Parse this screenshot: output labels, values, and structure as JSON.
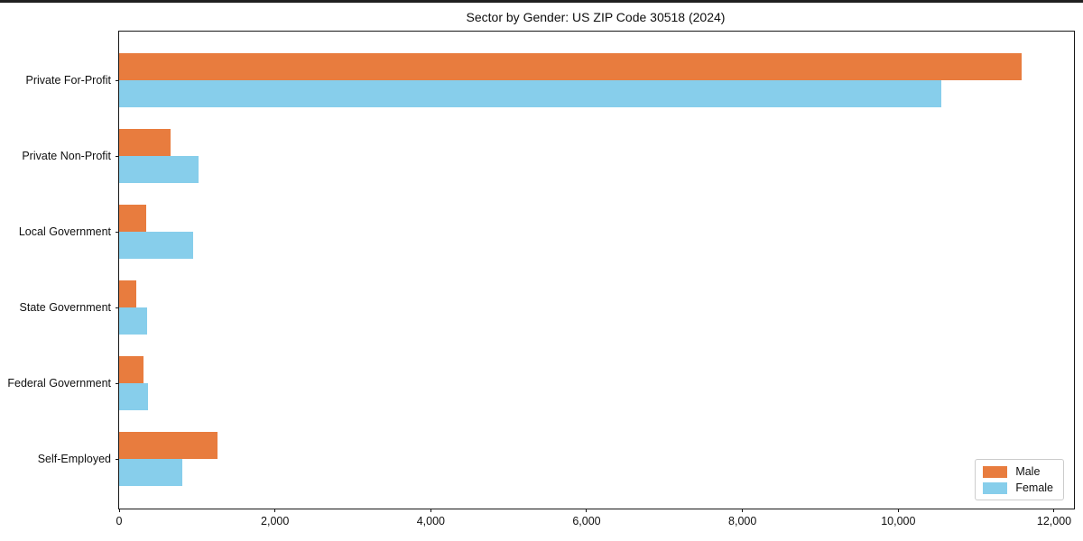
{
  "chart_data": {
    "type": "bar",
    "orientation": "horizontal",
    "title": "Sector by Gender: US ZIP Code 30518 (2024)",
    "categories": [
      "Private For-Profit",
      "Private Non-Profit",
      "Local Government",
      "State Government",
      "Federal Government",
      "Self-Employed"
    ],
    "series": [
      {
        "name": "Male",
        "color": "#E87C3E",
        "values": [
          11580,
          665,
          345,
          220,
          315,
          1265
        ]
      },
      {
        "name": "Female",
        "color": "#87CEEB",
        "values": [
          10550,
          1020,
          955,
          355,
          375,
          810
        ]
      }
    ],
    "xlabel": "",
    "ylabel": "",
    "xlim": [
      0,
      12255
    ],
    "x_ticks": [
      {
        "value": 0,
        "label": "0"
      },
      {
        "value": 2000,
        "label": "2,000"
      },
      {
        "value": 4000,
        "label": "4,000"
      },
      {
        "value": 6000,
        "label": "6,000"
      },
      {
        "value": 8000,
        "label": "8,000"
      },
      {
        "value": 10000,
        "label": "10,000"
      },
      {
        "value": 12000,
        "label": "12,000"
      }
    ],
    "grid": false,
    "legend_position": "lower right"
  },
  "colors": {
    "male": "#E87C3E",
    "female": "#87CEEB",
    "spine": "#161616",
    "background": "#ffffff"
  }
}
